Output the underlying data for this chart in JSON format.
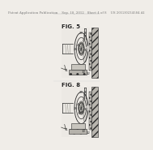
{
  "page_bg": "#f0ede8",
  "header_text": "Patent Application Publication    Sep. 18, 2012   Sheet 4 of 8    US 2012/0234584 A1",
  "header_fontsize": 2.8,
  "fig5_label": "FIG. 5",
  "fig8_label": "FIG. 8",
  "line_color": "#2a2a2a",
  "gray_light": "#c8c8c0",
  "gray_mid": "#a0a098",
  "gray_dark": "#606058",
  "hatch_color": "#888880",
  "bg_diagram": "#e8e5e0"
}
